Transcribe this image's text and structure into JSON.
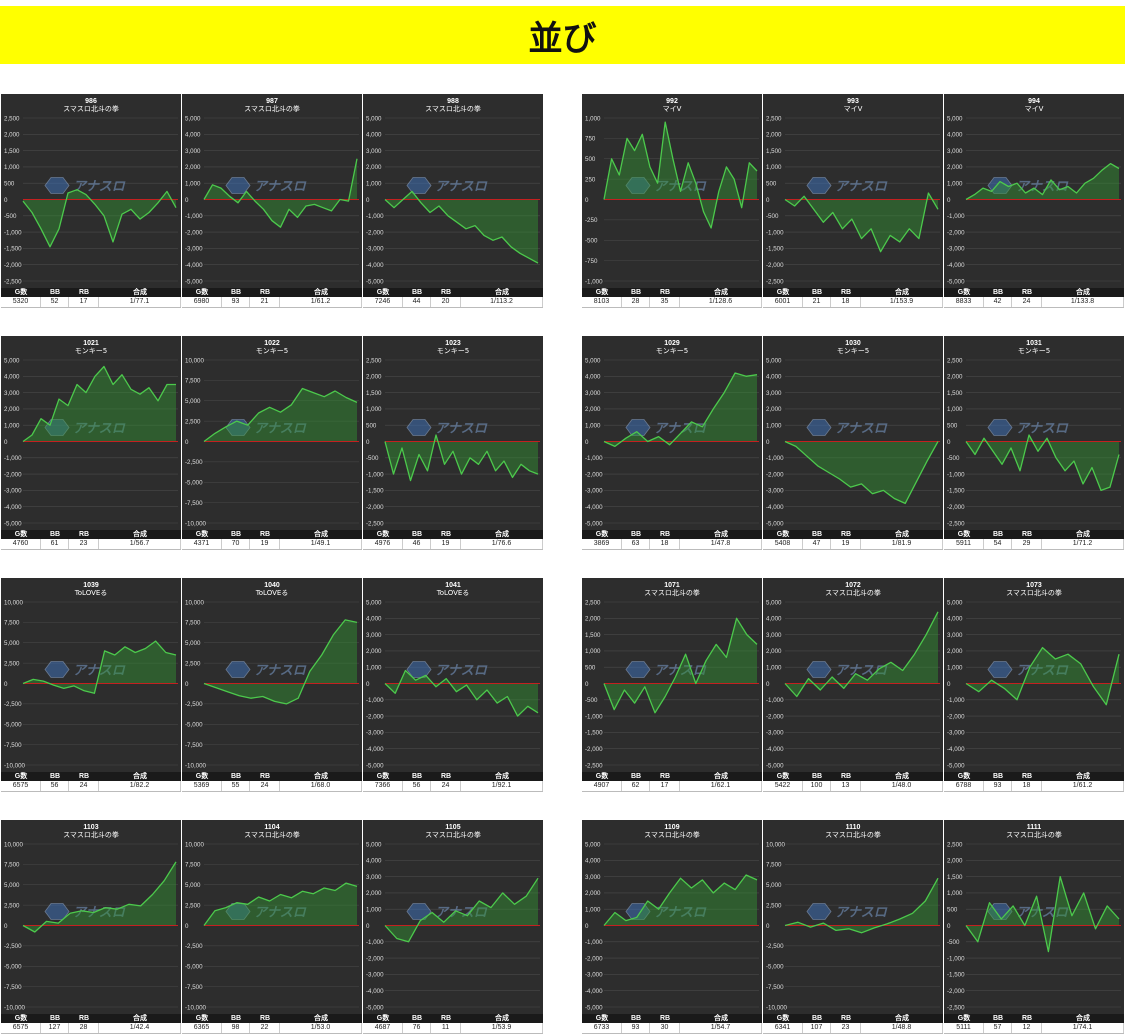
{
  "page": {
    "title": "並び",
    "banner_color": "#ffff00"
  },
  "stat_headers": {
    "games": "G数",
    "bb": "BB",
    "rb": "RB",
    "combined": "合成"
  },
  "colors": {
    "plot_bg": "#2d2d2d",
    "line": "#4cc94c",
    "fill": "rgba(50,150,50,0.45)",
    "zero_line": "#c42020",
    "grid": "#4a4a4a",
    "tick_text": "#dddddd"
  },
  "watermark_text": "アナスロ",
  "chart_data": [
    {
      "type": "area",
      "id": "986",
      "machine": "スマスロ北斗の拳",
      "ylim": [
        -2500,
        2500
      ],
      "yticks": [
        "2,500",
        "2,000",
        "1,500",
        "1,000",
        "500",
        "0",
        "-500",
        "-1,000",
        "-1,500",
        "-2,000",
        "-2,500"
      ],
      "values": [
        -50,
        -400,
        -900,
        -1450,
        -900,
        200,
        300,
        150,
        -150,
        -500,
        -1300,
        -450,
        -300,
        -600,
        -400,
        -100,
        250,
        -250
      ],
      "stats": {
        "g": "5320",
        "bb": "52",
        "rb": "17",
        "combined": "1/77.1"
      }
    },
    {
      "type": "area",
      "id": "987",
      "machine": "スマスロ北斗の拳",
      "ylim": [
        -5000,
        5000
      ],
      "yticks": [
        "5,000",
        "4,000",
        "3,000",
        "2,000",
        "1,000",
        "0",
        "-1,000",
        "-2,000",
        "-3,000",
        "-4,000",
        "-5,000"
      ],
      "values": [
        0,
        900,
        700,
        200,
        -200,
        500,
        -100,
        -600,
        -1300,
        -1700,
        -600,
        -1100,
        -400,
        -300,
        -500,
        -700,
        0,
        -100,
        2500
      ],
      "stats": {
        "g": "6980",
        "bb": "93",
        "rb": "21",
        "combined": "1/61.2"
      }
    },
    {
      "type": "area",
      "id": "988",
      "machine": "スマスロ北斗の拳",
      "ylim": [
        -5000,
        5000
      ],
      "yticks": [
        "5,000",
        "4,000",
        "3,000",
        "2,000",
        "1,000",
        "0",
        "-1,000",
        "-2,000",
        "-3,000",
        "-4,000",
        "-5,000"
      ],
      "values": [
        0,
        -500,
        0,
        500,
        -200,
        -800,
        -400,
        -1000,
        -1400,
        -1800,
        -1600,
        -2200,
        -2500,
        -2300,
        -2900,
        -3300,
        -3600,
        -3900
      ],
      "stats": {
        "g": "7246",
        "bb": "44",
        "rb": "20",
        "combined": "1/113.2"
      }
    },
    {
      "type": "area",
      "id": "992",
      "machine": "マイV",
      "ylim": [
        -1000,
        1000
      ],
      "yticks": [
        "1,000",
        "750",
        "500",
        "250",
        "0",
        "-250",
        "-500",
        "-750",
        "-1,000"
      ],
      "values": [
        0,
        500,
        300,
        750,
        600,
        800,
        400,
        200,
        950,
        500,
        100,
        450,
        200,
        -150,
        -350,
        100,
        400,
        250,
        -100,
        450,
        350
      ],
      "stats": {
        "g": "8103",
        "bb": "28",
        "rb": "35",
        "combined": "1/128.6"
      }
    },
    {
      "type": "area",
      "id": "993",
      "machine": "マイV",
      "ylim": [
        -2500,
        2500
      ],
      "yticks": [
        "2,500",
        "2,000",
        "1,500",
        "1,000",
        "500",
        "0",
        "-500",
        "-1,000",
        "-1,500",
        "-2,000",
        "-2,500"
      ],
      "values": [
        0,
        -200,
        100,
        -300,
        -700,
        -400,
        -900,
        -600,
        -1200,
        -900,
        -1600,
        -1100,
        -1300,
        -900,
        -1200,
        200,
        -300
      ],
      "stats": {
        "g": "6001",
        "bb": "21",
        "rb": "18",
        "combined": "1/153.9"
      }
    },
    {
      "type": "area",
      "id": "994",
      "machine": "マイV",
      "ylim": [
        -5000,
        5000
      ],
      "yticks": [
        "5,000",
        "4,000",
        "3,000",
        "2,000",
        "1,000",
        "0",
        "-1,000",
        "-2,000",
        "-3,000",
        "-4,000",
        "-5,000"
      ],
      "values": [
        0,
        300,
        700,
        500,
        1100,
        800,
        1000,
        400,
        700,
        300,
        1200,
        600,
        800,
        400,
        1000,
        1300,
        1800,
        2200,
        1900
      ],
      "stats": {
        "g": "8833",
        "bb": "42",
        "rb": "24",
        "combined": "1/133.8"
      }
    },
    {
      "type": "area",
      "id": "1021",
      "machine": "モンキー5",
      "ylim": [
        -5000,
        5000
      ],
      "yticks": [
        "5,000",
        "4,000",
        "3,000",
        "2,000",
        "1,000",
        "0",
        "-1,000",
        "-2,000",
        "-3,000",
        "-4,000",
        "-5,000"
      ],
      "values": [
        0,
        400,
        1400,
        1000,
        2600,
        2200,
        3500,
        3000,
        4000,
        4600,
        3500,
        4100,
        3200,
        2900,
        3300,
        2500,
        3500,
        3500
      ],
      "stats": {
        "g": "4760",
        "bb": "61",
        "rb": "23",
        "combined": "1/56.7"
      }
    },
    {
      "type": "area",
      "id": "1022",
      "machine": "モンキー5",
      "ylim": [
        -10000,
        10000
      ],
      "yticks": [
        "10,000",
        "7,500",
        "5,000",
        "2,500",
        "0",
        "-2,500",
        "-5,000",
        "-7,500",
        "-10,000"
      ],
      "values": [
        0,
        1000,
        1800,
        2500,
        2000,
        3500,
        4200,
        3600,
        4500,
        6500,
        6000,
        5500,
        6200,
        5400,
        4800
      ],
      "stats": {
        "g": "4371",
        "bb": "70",
        "rb": "19",
        "combined": "1/49.1"
      }
    },
    {
      "type": "area",
      "id": "1023",
      "machine": "モンキー5",
      "ylim": [
        -2500,
        2500
      ],
      "yticks": [
        "2,500",
        "2,000",
        "1,500",
        "1,000",
        "500",
        "0",
        "-500",
        "-1,000",
        "-1,500",
        "-2,000",
        "-2,500"
      ],
      "values": [
        0,
        -1000,
        -200,
        -1200,
        -400,
        -900,
        200,
        -700,
        -300,
        -1000,
        -500,
        -700,
        -300,
        -900,
        -600,
        -1100,
        -700,
        -900,
        -1000
      ],
      "stats": {
        "g": "4976",
        "bb": "46",
        "rb": "19",
        "combined": "1/76.6"
      }
    },
    {
      "type": "area",
      "id": "1029",
      "machine": "モンキー5",
      "ylim": [
        -5000,
        5000
      ],
      "yticks": [
        "5,000",
        "4,000",
        "3,000",
        "2,000",
        "1,000",
        "0",
        "-1,000",
        "-2,000",
        "-3,000",
        "-4,000",
        "-5,000"
      ],
      "values": [
        0,
        -300,
        200,
        600,
        0,
        300,
        -200,
        500,
        1200,
        900,
        2000,
        3000,
        4200,
        4000,
        4100
      ],
      "stats": {
        "g": "3869",
        "bb": "63",
        "rb": "18",
        "combined": "1/47.8"
      }
    },
    {
      "type": "area",
      "id": "1030",
      "machine": "モンキー5",
      "ylim": [
        -5000,
        5000
      ],
      "yticks": [
        "5,000",
        "4,000",
        "3,000",
        "2,000",
        "1,000",
        "0",
        "-1,000",
        "-2,000",
        "-3,000",
        "-4,000",
        "-5,000"
      ],
      "values": [
        0,
        -300,
        -900,
        -1500,
        -1900,
        -2300,
        -2800,
        -2600,
        -3200,
        -3000,
        -3500,
        -3800,
        -2500,
        -1200,
        0
      ],
      "stats": {
        "g": "5408",
        "bb": "47",
        "rb": "19",
        "combined": "1/81.9"
      }
    },
    {
      "type": "area",
      "id": "1031",
      "machine": "モンキー5",
      "ylim": [
        -2500,
        2500
      ],
      "yticks": [
        "2,500",
        "2,000",
        "1,500",
        "1,000",
        "500",
        "0",
        "-500",
        "-1,000",
        "-1,500",
        "-2,000",
        "-2,500"
      ],
      "values": [
        0,
        -400,
        100,
        -300,
        -700,
        -200,
        -900,
        200,
        -300,
        100,
        -500,
        -900,
        -600,
        -1300,
        -800,
        -1500,
        -1400,
        -400
      ],
      "stats": {
        "g": "5911",
        "bb": "54",
        "rb": "29",
        "combined": "1/71.2"
      }
    },
    {
      "type": "area",
      "id": "1039",
      "machine": "ToLOVEる",
      "ylim": [
        -10000,
        10000
      ],
      "yticks": [
        "10,000",
        "7,500",
        "5,000",
        "2,500",
        "0",
        "-2,500",
        "-5,000",
        "-7,500",
        "-10,000"
      ],
      "values": [
        0,
        500,
        300,
        -200,
        -600,
        -300,
        -900,
        -1200,
        4000,
        3500,
        4500,
        3800,
        4300,
        5200,
        3800,
        3500
      ],
      "stats": {
        "g": "6575",
        "bb": "56",
        "rb": "24",
        "combined": "1/82.2"
      }
    },
    {
      "type": "area",
      "id": "1040",
      "machine": "ToLOVEる",
      "ylim": [
        -10000,
        10000
      ],
      "yticks": [
        "10,000",
        "7,500",
        "5,000",
        "2,500",
        "0",
        "-2,500",
        "-5,000",
        "-7,500",
        "-10,000"
      ],
      "values": [
        0,
        -500,
        -1000,
        -1500,
        -1800,
        -1600,
        -2200,
        -2500,
        -1800,
        1500,
        3500,
        6000,
        7800,
        7500
      ],
      "stats": {
        "g": "5369",
        "bb": "55",
        "rb": "24",
        "combined": "1/68.0"
      }
    },
    {
      "type": "area",
      "id": "1041",
      "machine": "ToLOVEる",
      "ylim": [
        -5000,
        5000
      ],
      "yticks": [
        "5,000",
        "4,000",
        "3,000",
        "2,000",
        "1,000",
        "0",
        "-1,000",
        "-2,000",
        "-3,000",
        "-4,000",
        "-5,000"
      ],
      "values": [
        0,
        -600,
        800,
        200,
        500,
        -200,
        300,
        -500,
        -100,
        -1000,
        -400,
        -1200,
        -800,
        -2000,
        -1400,
        -1800
      ],
      "stats": {
        "g": "7366",
        "bb": "56",
        "rb": "24",
        "combined": "1/92.1"
      }
    },
    {
      "type": "area",
      "id": "1071",
      "machine": "スマスロ北斗の拳",
      "ylim": [
        -2500,
        2500
      ],
      "yticks": [
        "2,500",
        "2,000",
        "1,500",
        "1,000",
        "500",
        "0",
        "-500",
        "-1,000",
        "-1,500",
        "-2,000",
        "-2,500"
      ],
      "values": [
        0,
        -800,
        -200,
        -600,
        -100,
        -900,
        -400,
        200,
        900,
        0,
        700,
        1200,
        800,
        2000,
        1500,
        1200
      ],
      "stats": {
        "g": "4907",
        "bb": "62",
        "rb": "17",
        "combined": "1/62.1"
      }
    },
    {
      "type": "area",
      "id": "1072",
      "machine": "スマスロ北斗の拳",
      "ylim": [
        -5000,
        5000
      ],
      "yticks": [
        "5,000",
        "4,000",
        "3,000",
        "2,000",
        "1,000",
        "0",
        "-1,000",
        "-2,000",
        "-3,000",
        "-4,000",
        "-5,000"
      ],
      "values": [
        0,
        -800,
        300,
        -400,
        400,
        -300,
        600,
        200,
        900,
        1300,
        800,
        1800,
        3000,
        4400
      ],
      "stats": {
        "g": "5422",
        "bb": "100",
        "rb": "13",
        "combined": "1/48.0"
      }
    },
    {
      "type": "area",
      "id": "1073",
      "machine": "スマスロ北斗の拳",
      "ylim": [
        -5000,
        5000
      ],
      "yticks": [
        "5,000",
        "4,000",
        "3,000",
        "2,000",
        "1,000",
        "0",
        "-1,000",
        "-2,000",
        "-3,000",
        "-4,000",
        "-5,000"
      ],
      "values": [
        0,
        -500,
        200,
        -300,
        -1000,
        1000,
        2200,
        1500,
        1800,
        1200,
        -200,
        -1300,
        1800
      ],
      "stats": {
        "g": "6788",
        "bb": "93",
        "rb": "18",
        "combined": "1/61.2"
      }
    },
    {
      "type": "area",
      "id": "1103",
      "machine": "スマスロ北斗の拳",
      "ylim": [
        -10000,
        10000
      ],
      "yticks": [
        "10,000",
        "7,500",
        "5,000",
        "2,500",
        "0",
        "-2,500",
        "-5,000",
        "-7,500",
        "-10,000"
      ],
      "values": [
        0,
        -800,
        500,
        300,
        1500,
        1800,
        1600,
        2200,
        2000,
        2600,
        2400,
        3800,
        5500,
        7800
      ],
      "stats": {
        "g": "6575",
        "bb": "127",
        "rb": "28",
        "combined": "1/42.4"
      }
    },
    {
      "type": "area",
      "id": "1104",
      "machine": "スマスロ北斗の拳",
      "ylim": [
        -10000,
        10000
      ],
      "yticks": [
        "10,000",
        "7,500",
        "5,000",
        "2,500",
        "0",
        "-2,500",
        "-5,000",
        "-7,500",
        "-10,000"
      ],
      "values": [
        0,
        1800,
        2200,
        2800,
        2600,
        3500,
        3000,
        3800,
        3400,
        4200,
        3900,
        4600,
        4300,
        5200,
        4800
      ],
      "stats": {
        "g": "6365",
        "bb": "98",
        "rb": "22",
        "combined": "1/53.0"
      }
    },
    {
      "type": "area",
      "id": "1105",
      "machine": "スマスロ北斗の拳",
      "ylim": [
        -5000,
        5000
      ],
      "yticks": [
        "5,000",
        "4,000",
        "3,000",
        "2,000",
        "1,000",
        "0",
        "-1,000",
        "-2,000",
        "-3,000",
        "-4,000",
        "-5,000"
      ],
      "values": [
        0,
        -800,
        -1000,
        300,
        800,
        200,
        900,
        600,
        1500,
        1100,
        2000,
        1300,
        1800,
        2900
      ],
      "stats": {
        "g": "4687",
        "bb": "76",
        "rb": "11",
        "combined": "1/53.9"
      }
    },
    {
      "type": "area",
      "id": "1109",
      "machine": "スマスロ北斗の拳",
      "ylim": [
        -5000,
        5000
      ],
      "yticks": [
        "5,000",
        "4,000",
        "3,000",
        "2,000",
        "1,000",
        "0",
        "-1,000",
        "-2,000",
        "-3,000",
        "-4,000",
        "-5,000"
      ],
      "values": [
        0,
        800,
        300,
        500,
        1500,
        1000,
        2000,
        2900,
        2300,
        2800,
        2000,
        2600,
        2200,
        3100,
        2800
      ],
      "stats": {
        "g": "6733",
        "bb": "93",
        "rb": "30",
        "combined": "1/54.7"
      }
    },
    {
      "type": "area",
      "id": "1110",
      "machine": "スマスロ北斗の拳",
      "ylim": [
        -10000,
        10000
      ],
      "yticks": [
        "10,000",
        "7,500",
        "5,000",
        "2,500",
        "0",
        "-2,500",
        "-5,000",
        "-7,500",
        "-10,000"
      ],
      "values": [
        0,
        400,
        -200,
        300,
        -600,
        -400,
        -900,
        -300,
        200,
        800,
        1500,
        3000,
        5800
      ],
      "stats": {
        "g": "6341",
        "bb": "107",
        "rb": "23",
        "combined": "1/48.8"
      }
    },
    {
      "type": "area",
      "id": "1111",
      "machine": "スマスロ北斗の拳",
      "ylim": [
        -2500,
        2500
      ],
      "yticks": [
        "2,500",
        "2,000",
        "1,500",
        "1,000",
        "500",
        "0",
        "-500",
        "-1,000",
        "-1,500",
        "-2,000",
        "-2,500"
      ],
      "values": [
        0,
        -500,
        700,
        200,
        600,
        0,
        900,
        -800,
        1500,
        300,
        1000,
        -100,
        600,
        200
      ],
      "stats": {
        "g": "5111",
        "bb": "57",
        "rb": "12",
        "combined": "1/74.1"
      }
    }
  ]
}
